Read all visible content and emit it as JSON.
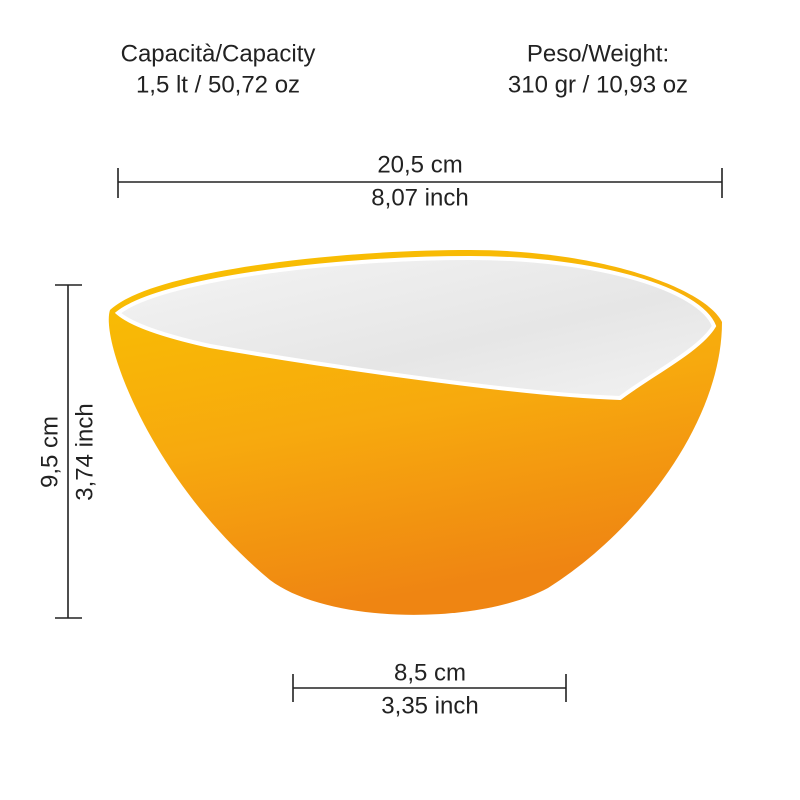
{
  "capacity": {
    "label": "Capacità/Capacity",
    "value": "1,5 lt / 50,72 oz"
  },
  "weight": {
    "label": "Peso/Weight:",
    "value": "310 gr / 10,93 oz"
  },
  "width": {
    "cm": "20,5 cm",
    "inch": "8,07 inch"
  },
  "height": {
    "cm": "9,5 cm",
    "inch": "3,74 inch"
  },
  "base": {
    "cm": "8,5 cm",
    "inch": "3,35 inch"
  }
}
